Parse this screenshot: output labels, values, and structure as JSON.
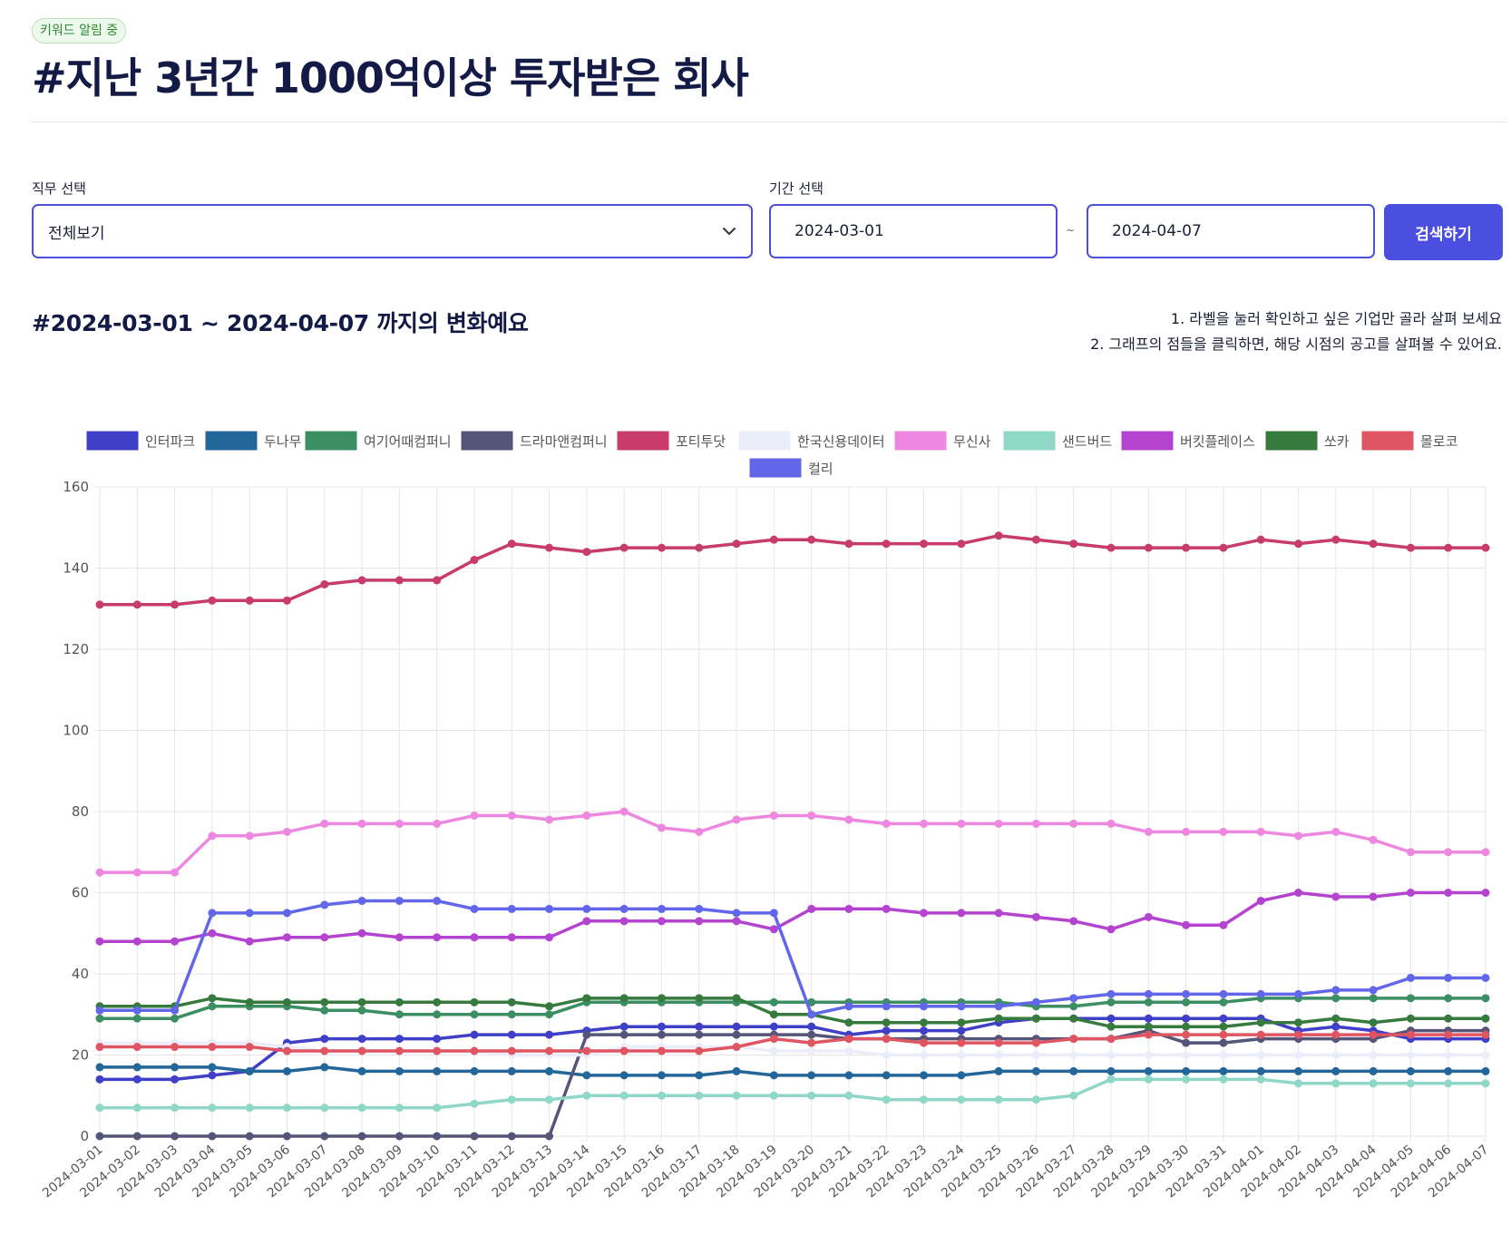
{
  "badge": "키워드 알림 중",
  "title": "#지난 3년간 1000억이상 투자받은 회사",
  "filters": {
    "job_label": "직무 선택",
    "job_value": "전체보기",
    "period_label": "기간 선택",
    "start_date": "2024-03-01",
    "end_date": "2024-04-07",
    "separator": "~",
    "search_button": "검색하기"
  },
  "section_title": "#2024-03-01 ~ 2024-04-07 까지의 변화예요",
  "hints": [
    "1. 라벨을 눌러 확인하고 싶은 기업만 골라 살펴 보세요",
    "2. 그래프의 점들을 클릭하면, 해당 시점의 공고를 살펴볼 수 있어요."
  ],
  "chart_data": {
    "type": "line",
    "x": [
      "2024-03-01",
      "2024-03-02",
      "2024-03-03",
      "2024-03-04",
      "2024-03-05",
      "2024-03-06",
      "2024-03-07",
      "2024-03-08",
      "2024-03-09",
      "2024-03-10",
      "2024-03-11",
      "2024-03-12",
      "2024-03-13",
      "2024-03-14",
      "2024-03-15",
      "2024-03-16",
      "2024-03-17",
      "2024-03-18",
      "2024-03-19",
      "2024-03-20",
      "2024-03-21",
      "2024-03-22",
      "2024-03-23",
      "2024-03-24",
      "2024-03-25",
      "2024-03-26",
      "2024-03-27",
      "2024-03-28",
      "2024-03-29",
      "2024-03-30",
      "2024-03-31",
      "2024-04-01",
      "2024-04-02",
      "2024-04-03",
      "2024-04-04",
      "2024-04-05",
      "2024-04-06",
      "2024-04-07"
    ],
    "ylim": [
      0,
      160
    ],
    "yticks": [
      0,
      20,
      40,
      60,
      80,
      100,
      120,
      140,
      160
    ],
    "grid": true,
    "legend_position": "top",
    "series": [
      {
        "name": "인터파크",
        "color": "#3f3fc8",
        "values": [
          14,
          14,
          14,
          15,
          16,
          23,
          24,
          24,
          24,
          24,
          25,
          25,
          25,
          26,
          27,
          27,
          27,
          27,
          27,
          27,
          25,
          26,
          26,
          26,
          28,
          29,
          29,
          29,
          29,
          29,
          29,
          29,
          26,
          27,
          26,
          24,
          24,
          24
        ]
      },
      {
        "name": "두나무",
        "color": "#23669a",
        "values": [
          17,
          17,
          17,
          17,
          16,
          16,
          17,
          16,
          16,
          16,
          16,
          16,
          16,
          15,
          15,
          15,
          15,
          16,
          15,
          15,
          15,
          15,
          15,
          15,
          16,
          16,
          16,
          16,
          16,
          16,
          16,
          16,
          16,
          16,
          16,
          16,
          16,
          16
        ]
      },
      {
        "name": "여기어때컴퍼니",
        "color": "#3b8f62",
        "values": [
          29,
          29,
          29,
          32,
          32,
          32,
          31,
          31,
          30,
          30,
          30,
          30,
          30,
          33,
          33,
          33,
          33,
          33,
          33,
          33,
          33,
          33,
          33,
          33,
          33,
          32,
          32,
          33,
          33,
          33,
          33,
          34,
          34,
          34,
          34,
          34,
          34,
          34
        ]
      },
      {
        "name": "드라마앤컴퍼니",
        "color": "#55557a",
        "values": [
          0,
          0,
          0,
          0,
          0,
          0,
          0,
          0,
          0,
          0,
          0,
          0,
          0,
          25,
          25,
          25,
          25,
          25,
          25,
          25,
          24,
          24,
          24,
          24,
          24,
          24,
          24,
          24,
          26,
          23,
          23,
          24,
          24,
          24,
          24,
          26,
          26,
          26
        ]
      },
      {
        "name": "포티투닷",
        "color": "#c73c6b",
        "values": [
          131,
          131,
          131,
          132,
          132,
          132,
          136,
          137,
          137,
          137,
          142,
          146,
          145,
          144,
          145,
          145,
          145,
          146,
          147,
          147,
          146,
          146,
          146,
          146,
          148,
          147,
          146,
          145,
          145,
          145,
          145,
          147,
          146,
          147,
          146,
          145,
          145,
          145
        ]
      },
      {
        "name": "한국신용데이터",
        "color": "#ecedfa",
        "values": [
          23,
          23,
          23,
          23,
          23,
          22,
          21,
          21,
          21,
          21,
          21,
          20,
          20,
          20,
          22,
          22,
          22,
          22,
          21,
          21,
          21,
          20,
          20,
          20,
          20,
          20,
          20,
          20,
          20,
          20,
          20,
          20,
          20,
          20,
          20,
          20,
          20,
          20
        ]
      },
      {
        "name": "무신사",
        "color": "#ee87e0",
        "values": [
          65,
          65,
          65,
          74,
          74,
          75,
          77,
          77,
          77,
          77,
          79,
          79,
          78,
          79,
          80,
          76,
          75,
          78,
          79,
          79,
          78,
          77,
          77,
          77,
          77,
          77,
          77,
          77,
          75,
          75,
          75,
          75,
          74,
          75,
          73,
          70,
          70,
          70
        ]
      },
      {
        "name": "샌드버드",
        "color": "#8fd8c8",
        "values": [
          7,
          7,
          7,
          7,
          7,
          7,
          7,
          7,
          7,
          7,
          8,
          9,
          9,
          10,
          10,
          10,
          10,
          10,
          10,
          10,
          10,
          9,
          9,
          9,
          9,
          9,
          10,
          14,
          14,
          14,
          14,
          14,
          13,
          13,
          13,
          13,
          13,
          13
        ]
      },
      {
        "name": "버킷플레이스",
        "color": "#b443cf",
        "values": [
          48,
          48,
          48,
          50,
          48,
          49,
          49,
          50,
          49,
          49,
          49,
          49,
          49,
          53,
          53,
          53,
          53,
          53,
          51,
          56,
          56,
          56,
          55,
          55,
          55,
          54,
          53,
          51,
          54,
          52,
          52,
          58,
          60,
          59,
          59,
          60,
          60,
          60
        ]
      },
      {
        "name": "쏘카",
        "color": "#367a3e",
        "values": [
          32,
          32,
          32,
          34,
          33,
          33,
          33,
          33,
          33,
          33,
          33,
          33,
          32,
          34,
          34,
          34,
          34,
          34,
          30,
          30,
          28,
          28,
          28,
          28,
          29,
          29,
          29,
          27,
          27,
          27,
          27,
          28,
          28,
          29,
          28,
          29,
          29,
          29
        ]
      },
      {
        "name": "몰로코",
        "color": "#e05562",
        "values": [
          22,
          22,
          22,
          22,
          22,
          21,
          21,
          21,
          21,
          21,
          21,
          21,
          21,
          21,
          21,
          21,
          21,
          22,
          24,
          23,
          24,
          24,
          23,
          23,
          23,
          23,
          24,
          24,
          25,
          25,
          25,
          25,
          25,
          25,
          25,
          25,
          25,
          25
        ]
      },
      {
        "name": "컬리",
        "color": "#6266e8",
        "values": [
          31,
          31,
          31,
          55,
          55,
          55,
          57,
          58,
          58,
          58,
          56,
          56,
          56,
          56,
          56,
          56,
          56,
          55,
          55,
          30,
          32,
          32,
          32,
          32,
          32,
          33,
          34,
          35,
          35,
          35,
          35,
          35,
          35,
          36,
          36,
          39,
          39,
          39
        ]
      }
    ]
  }
}
